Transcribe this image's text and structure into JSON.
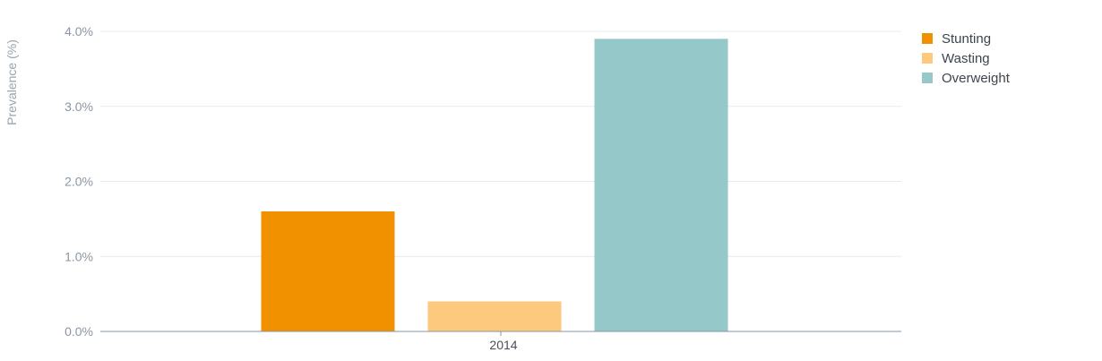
{
  "chart_data": {
    "type": "bar",
    "title": "",
    "xlabel": "",
    "ylabel": "Prevalence (%)",
    "categories": [
      "2014"
    ],
    "series": [
      {
        "name": "Stunting",
        "color": "#f29100",
        "values": [
          1.6
        ]
      },
      {
        "name": "Wasting",
        "color": "#fcc97e",
        "values": [
          0.4
        ]
      },
      {
        "name": "Overweight",
        "color": "#95c8c8",
        "values": [
          3.9
        ]
      }
    ],
    "ylim": [
      0,
      4
    ],
    "yticks": [
      {
        "value": 0,
        "label": "0.0%"
      },
      {
        "value": 1,
        "label": "1.0%"
      },
      {
        "value": 2,
        "label": "2.0%"
      },
      {
        "value": 3,
        "label": "3.0%"
      },
      {
        "value": 4,
        "label": "4.0%"
      }
    ],
    "grid": true,
    "legend_position": "top-right",
    "colors": {
      "gridline": "#e3ecef",
      "axis": "#8a96a3"
    }
  }
}
